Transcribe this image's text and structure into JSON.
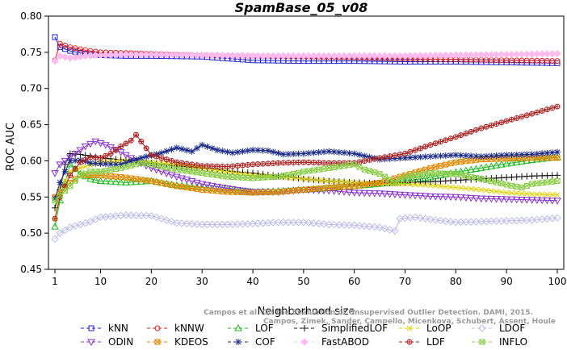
{
  "chart_data": {
    "type": "line",
    "title": "SpamBase_05_v08",
    "xlabel": "Neighborhood size",
    "ylabel": "ROC AUC",
    "xlim": [
      1,
      100
    ],
    "ylim": [
      0.45,
      0.8
    ],
    "xticks": [
      1,
      10,
      20,
      30,
      40,
      50,
      60,
      70,
      80,
      90,
      100
    ],
    "xtick_labels": [
      "1",
      "10",
      "20",
      "30",
      "40",
      "50",
      "60",
      "70",
      "80",
      "90",
      "100"
    ],
    "yticks": [
      0.45,
      0.5,
      0.55,
      0.6,
      0.65,
      0.7,
      0.75,
      0.8
    ],
    "ytick_labels": [
      "0.45",
      "0.50",
      "0.55",
      "0.60",
      "0.65",
      "0.70",
      "0.75",
      "0.80"
    ],
    "grid": false,
    "legend_position": "bottom",
    "credit": [
      "Campos et al. On the Evaluation of Unsupervised Outlier Detection. DAMI, 2015.",
      "Campos, Zimek, Sander, Campello, Micenkova, Schubert, Assent, Houle"
    ],
    "series": [
      {
        "name": "kNN",
        "color": "#2222cc",
        "marker": "square",
        "points": [
          [
            1,
            0.771
          ],
          [
            2,
            0.757
          ],
          [
            4,
            0.752
          ],
          [
            7,
            0.748
          ],
          [
            10,
            0.746
          ],
          [
            15,
            0.745
          ],
          [
            20,
            0.745
          ],
          [
            30,
            0.744
          ],
          [
            40,
            0.739
          ],
          [
            50,
            0.738
          ],
          [
            60,
            0.738
          ],
          [
            70,
            0.737
          ],
          [
            80,
            0.737
          ],
          [
            90,
            0.736
          ],
          [
            100,
            0.735
          ]
        ]
      },
      {
        "name": "kNNW",
        "color": "#dd2222",
        "marker": "circle",
        "points": [
          [
            1,
            0.739
          ],
          [
            2,
            0.762
          ],
          [
            4,
            0.757
          ],
          [
            7,
            0.753
          ],
          [
            10,
            0.75
          ],
          [
            15,
            0.749
          ],
          [
            20,
            0.748
          ],
          [
            30,
            0.746
          ],
          [
            40,
            0.745
          ],
          [
            50,
            0.744
          ],
          [
            60,
            0.743
          ],
          [
            70,
            0.741
          ],
          [
            80,
            0.74
          ],
          [
            90,
            0.739
          ],
          [
            100,
            0.738
          ]
        ]
      },
      {
        "name": "LOF",
        "color": "#22bb22",
        "marker": "triangle",
        "points": [
          [
            1,
            0.509
          ],
          [
            2,
            0.545
          ],
          [
            4,
            0.595
          ],
          [
            6,
            0.582
          ],
          [
            8,
            0.575
          ],
          [
            10,
            0.572
          ],
          [
            15,
            0.57
          ],
          [
            20,
            0.572
          ],
          [
            25,
            0.566
          ],
          [
            30,
            0.563
          ],
          [
            35,
            0.56
          ],
          [
            40,
            0.557
          ],
          [
            45,
            0.558
          ],
          [
            50,
            0.56
          ],
          [
            55,
            0.562
          ],
          [
            60,
            0.565
          ],
          [
            65,
            0.568
          ],
          [
            70,
            0.572
          ],
          [
            75,
            0.577
          ],
          [
            80,
            0.584
          ],
          [
            85,
            0.59
          ],
          [
            90,
            0.596
          ],
          [
            95,
            0.601
          ],
          [
            100,
            0.605
          ]
        ]
      },
      {
        "name": "SimplifiedLOF",
        "color": "#111111",
        "marker": "plus",
        "points": [
          [
            1,
            0.535
          ],
          [
            2,
            0.56
          ],
          [
            3,
            0.595
          ],
          [
            4,
            0.61
          ],
          [
            6,
            0.609
          ],
          [
            10,
            0.604
          ],
          [
            15,
            0.601
          ],
          [
            20,
            0.597
          ],
          [
            25,
            0.593
          ],
          [
            30,
            0.59
          ],
          [
            35,
            0.586
          ],
          [
            40,
            0.583
          ],
          [
            45,
            0.579
          ],
          [
            50,
            0.575
          ],
          [
            55,
            0.572
          ],
          [
            60,
            0.57
          ],
          [
            65,
            0.569
          ],
          [
            70,
            0.57
          ],
          [
            75,
            0.571
          ],
          [
            80,
            0.573
          ],
          [
            85,
            0.575
          ],
          [
            90,
            0.577
          ],
          [
            95,
            0.579
          ],
          [
            100,
            0.58
          ]
        ]
      },
      {
        "name": "LoOP",
        "color": "#e0d000",
        "marker": "x",
        "points": [
          [
            1,
            0.52
          ],
          [
            2,
            0.56
          ],
          [
            4,
            0.585
          ],
          [
            6,
            0.59
          ],
          [
            10,
            0.598
          ],
          [
            15,
            0.6
          ],
          [
            20,
            0.598
          ],
          [
            25,
            0.595
          ],
          [
            30,
            0.59
          ],
          [
            35,
            0.585
          ],
          [
            40,
            0.58
          ],
          [
            45,
            0.578
          ],
          [
            50,
            0.575
          ],
          [
            55,
            0.572
          ],
          [
            60,
            0.57
          ],
          [
            65,
            0.568
          ],
          [
            70,
            0.568
          ],
          [
            75,
            0.566
          ],
          [
            80,
            0.563
          ],
          [
            85,
            0.56
          ],
          [
            90,
            0.556
          ],
          [
            95,
            0.554
          ],
          [
            100,
            0.553
          ]
        ]
      },
      {
        "name": "LDOF",
        "color": "#bbbbee",
        "marker": "diamond",
        "points": [
          [
            1,
            0.492
          ],
          [
            2,
            0.5
          ],
          [
            4,
            0.508
          ],
          [
            6,
            0.512
          ],
          [
            8,
            0.516
          ],
          [
            10,
            0.522
          ],
          [
            15,
            0.525
          ],
          [
            20,
            0.524
          ],
          [
            25,
            0.514
          ],
          [
            30,
            0.512
          ],
          [
            35,
            0.512
          ],
          [
            40,
            0.513
          ],
          [
            45,
            0.515
          ],
          [
            50,
            0.515
          ],
          [
            55,
            0.512
          ],
          [
            60,
            0.511
          ],
          [
            65,
            0.508
          ],
          [
            68,
            0.503
          ],
          [
            69,
            0.52
          ],
          [
            72,
            0.522
          ],
          [
            75,
            0.519
          ],
          [
            80,
            0.515
          ],
          [
            85,
            0.516
          ],
          [
            90,
            0.517
          ],
          [
            95,
            0.518
          ],
          [
            100,
            0.521
          ]
        ]
      },
      {
        "name": "ODIN",
        "color": "#8833cc",
        "marker": "triangle-down",
        "points": [
          [
            1,
            0.583
          ],
          [
            2,
            0.595
          ],
          [
            4,
            0.605
          ],
          [
            7,
            0.62
          ],
          [
            9,
            0.627
          ],
          [
            11,
            0.622
          ],
          [
            14,
            0.612
          ],
          [
            17,
            0.6
          ],
          [
            20,
            0.59
          ],
          [
            25,
            0.578
          ],
          [
            30,
            0.568
          ],
          [
            35,
            0.562
          ],
          [
            40,
            0.557
          ],
          [
            45,
            0.557
          ],
          [
            50,
            0.56
          ],
          [
            55,
            0.559
          ],
          [
            60,
            0.556
          ],
          [
            65,
            0.555
          ],
          [
            70,
            0.553
          ],
          [
            75,
            0.551
          ],
          [
            80,
            0.55
          ],
          [
            85,
            0.548
          ],
          [
            90,
            0.547
          ],
          [
            95,
            0.546
          ],
          [
            100,
            0.545
          ]
        ]
      },
      {
        "name": "KDEOS",
        "color": "#e08a00",
        "marker": "square-x",
        "points": [
          [
            1,
            0.55
          ],
          [
            2,
            0.555
          ],
          [
            4,
            0.57
          ],
          [
            6,
            0.58
          ],
          [
            10,
            0.58
          ],
          [
            15,
            0.577
          ],
          [
            20,
            0.572
          ],
          [
            25,
            0.565
          ],
          [
            30,
            0.56
          ],
          [
            35,
            0.557
          ],
          [
            40,
            0.556
          ],
          [
            45,
            0.557
          ],
          [
            50,
            0.56
          ],
          [
            55,
            0.563
          ],
          [
            60,
            0.565
          ],
          [
            65,
            0.57
          ],
          [
            70,
            0.58
          ],
          [
            75,
            0.59
          ],
          [
            80,
            0.598
          ],
          [
            85,
            0.602
          ],
          [
            90,
            0.603
          ],
          [
            95,
            0.604
          ],
          [
            100,
            0.604
          ]
        ]
      },
      {
        "name": "COF",
        "color": "#1a2a88",
        "marker": "star",
        "points": [
          [
            1,
            0.548
          ],
          [
            2,
            0.57
          ],
          [
            4,
            0.6
          ],
          [
            6,
            0.601
          ],
          [
            8,
            0.597
          ],
          [
            10,
            0.596
          ],
          [
            14,
            0.595
          ],
          [
            18,
            0.604
          ],
          [
            22,
            0.611
          ],
          [
            25,
            0.618
          ],
          [
            28,
            0.613
          ],
          [
            30,
            0.622
          ],
          [
            33,
            0.615
          ],
          [
            36,
            0.611
          ],
          [
            40,
            0.615
          ],
          [
            43,
            0.614
          ],
          [
            46,
            0.609
          ],
          [
            50,
            0.61
          ],
          [
            55,
            0.613
          ],
          [
            60,
            0.61
          ],
          [
            65,
            0.602
          ],
          [
            70,
            0.604
          ],
          [
            75,
            0.606
          ],
          [
            80,
            0.608
          ],
          [
            85,
            0.606
          ],
          [
            90,
            0.608
          ],
          [
            95,
            0.609
          ],
          [
            100,
            0.612
          ]
        ]
      },
      {
        "name": "FastABOD",
        "color": "#ffbbee",
        "marker": "diamond-filled",
        "points": [
          [
            1,
            0.738
          ],
          [
            2,
            0.745
          ],
          [
            4,
            0.742
          ],
          [
            7,
            0.745
          ],
          [
            10,
            0.746
          ],
          [
            15,
            0.747
          ],
          [
            20,
            0.747
          ],
          [
            30,
            0.746
          ],
          [
            40,
            0.745
          ],
          [
            50,
            0.745
          ],
          [
            60,
            0.745
          ],
          [
            70,
            0.745
          ],
          [
            80,
            0.746
          ],
          [
            90,
            0.747
          ],
          [
            100,
            0.748
          ]
        ]
      },
      {
        "name": "LDF",
        "color": "#aa2222",
        "marker": "circle-plus",
        "points": [
          [
            1,
            0.52
          ],
          [
            2,
            0.55
          ],
          [
            4,
            0.58
          ],
          [
            6,
            0.598
          ],
          [
            8,
            0.605
          ],
          [
            10,
            0.604
          ],
          [
            12,
            0.61
          ],
          [
            14,
            0.62
          ],
          [
            16,
            0.628
          ],
          [
            17,
            0.636
          ],
          [
            20,
            0.608
          ],
          [
            25,
            0.598
          ],
          [
            30,
            0.593
          ],
          [
            35,
            0.592
          ],
          [
            40,
            0.595
          ],
          [
            45,
            0.597
          ],
          [
            50,
            0.598
          ],
          [
            55,
            0.597
          ],
          [
            60,
            0.597
          ],
          [
            65,
            0.604
          ],
          [
            70,
            0.61
          ],
          [
            75,
            0.622
          ],
          [
            80,
            0.633
          ],
          [
            85,
            0.645
          ],
          [
            90,
            0.655
          ],
          [
            95,
            0.665
          ],
          [
            100,
            0.675
          ]
        ]
      },
      {
        "name": "INFLO",
        "color": "#88cc44",
        "marker": "square-x",
        "points": [
          [
            1,
            0.545
          ],
          [
            2,
            0.552
          ],
          [
            4,
            0.565
          ],
          [
            6,
            0.58
          ],
          [
            8,
            0.585
          ],
          [
            10,
            0.585
          ],
          [
            14,
            0.59
          ],
          [
            18,
            0.597
          ],
          [
            20,
            0.595
          ],
          [
            25,
            0.588
          ],
          [
            30,
            0.583
          ],
          [
            35,
            0.578
          ],
          [
            40,
            0.576
          ],
          [
            45,
            0.578
          ],
          [
            50,
            0.585
          ],
          [
            55,
            0.59
          ],
          [
            60,
            0.595
          ],
          [
            62,
            0.588
          ],
          [
            65,
            0.582
          ],
          [
            68,
            0.57
          ],
          [
            70,
            0.578
          ],
          [
            75,
            0.583
          ],
          [
            80,
            0.582
          ],
          [
            85,
            0.575
          ],
          [
            90,
            0.567
          ],
          [
            93,
            0.563
          ],
          [
            95,
            0.568
          ],
          [
            100,
            0.572
          ]
        ]
      }
    ]
  }
}
